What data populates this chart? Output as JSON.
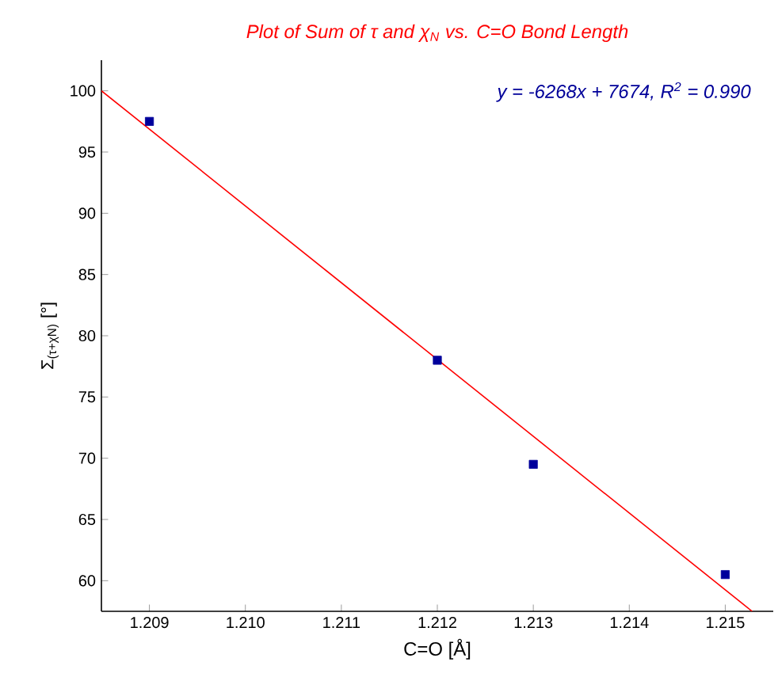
{
  "chart_data": {
    "type": "scatter",
    "title": "Plot of Sum of τ and χ$_{N}$ vs. C=O Bond Length",
    "xlabel": "C=O [Å]",
    "ylabel": "Σ$_{(τ+χN)}$ [°]",
    "annotations": [
      "y = -6268x + 7674, R$^{2}$ = 0.990"
    ],
    "x": [
      1.209,
      1.212,
      1.213,
      1.215
    ],
    "series": [
      {
        "color": "#00009c",
        "values": [
          97.5,
          78,
          69.5,
          60.5
        ]
      },
      {
        "type": "line",
        "marker": "none",
        "color": "#ff0000",
        "x": [
          1.2085,
          1.21528
        ],
        "values": [
          100,
          57.5
        ]
      }
    ],
    "marker": "square",
    "grid": false,
    "legend": false,
    "xlim": [
      1.2085,
      1.2155
    ],
    "ylim": [
      57.5,
      102.5
    ],
    "xticks": [
      {
        "value": 1.209,
        "label": "1.209"
      },
      {
        "value": 1.21,
        "label": "1.210"
      },
      {
        "value": 1.211,
        "label": "1.211"
      },
      {
        "value": 1.212,
        "label": "1.212"
      },
      {
        "value": 1.213,
        "label": "1.213"
      },
      {
        "value": 1.214,
        "label": "1.214"
      },
      {
        "value": 1.215,
        "label": "1.215"
      }
    ],
    "yticks": [
      60,
      65,
      70,
      75,
      80,
      85,
      90,
      95,
      100
    ]
  }
}
